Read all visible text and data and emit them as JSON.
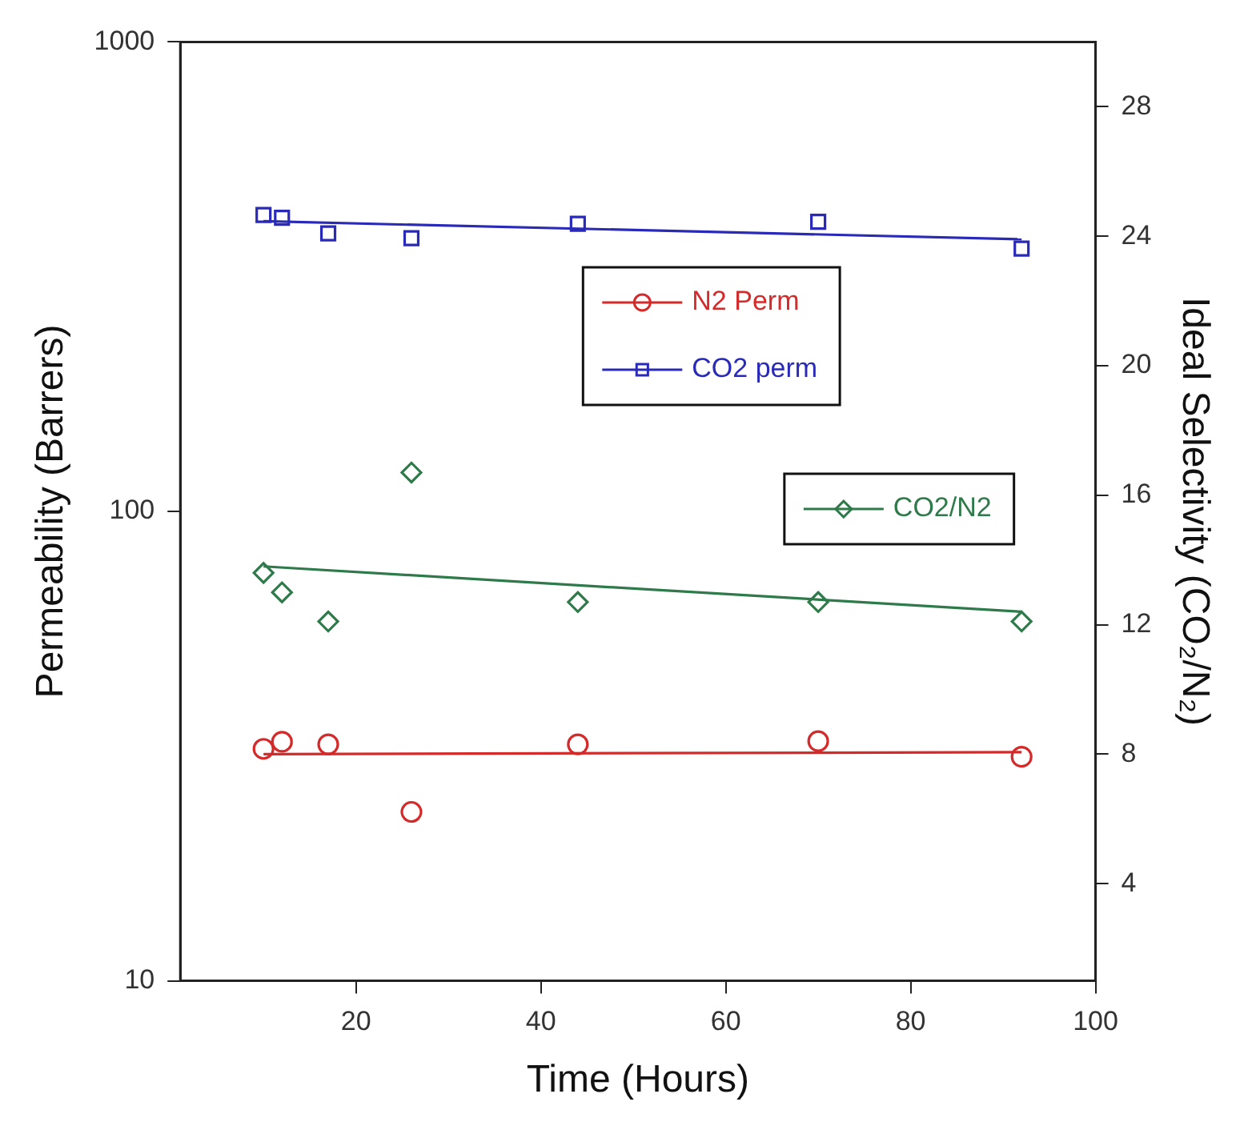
{
  "chart_data": {
    "type": "scatter",
    "xlabel": "Time (Hours)",
    "ylabel": "Permeability (Barrers)",
    "y2label": "Ideal Selectivity (CO₂/N₂)",
    "xlim": [
      1,
      100
    ],
    "xticks": [
      20,
      40,
      60,
      80,
      100
    ],
    "ylim": [
      10,
      1000
    ],
    "yticks": [
      10,
      100,
      1000
    ],
    "y2lim": [
      1,
      30
    ],
    "y2ticks": [
      4,
      8,
      12,
      16,
      20,
      24,
      28
    ],
    "log": "y",
    "grid": false,
    "legend": "right",
    "series": [
      {
        "name": "N2 Perm",
        "type": "scatter",
        "marker": "circle",
        "color": "#d42a2a",
        "x": [
          10,
          12,
          17,
          26,
          44,
          70,
          92
        ],
        "values": [
          31.2,
          32.3,
          31.9,
          22.9,
          31.9,
          32.4,
          30.0
        ]
      },
      {
        "name": "CO2 perm",
        "type": "scatter",
        "marker": "square",
        "color": "#2a2ab8",
        "x": [
          10,
          12,
          17,
          26,
          44,
          70,
          92
        ],
        "values": [
          428,
          422,
          391,
          382,
          410,
          414,
          363
        ]
      },
      {
        "name": "CO2/N2",
        "type": "scatter",
        "marker": "diamond",
        "axis": "y2",
        "color": "#2f7a4a",
        "x": [
          10,
          12,
          17,
          26,
          44,
          70,
          92
        ],
        "values": [
          13.6,
          13.0,
          12.1,
          16.7,
          12.7,
          12.7,
          12.1
        ]
      },
      {
        "type": "line",
        "marker": "none",
        "color": "#d42a2a",
        "x": [
          10,
          92
        ],
        "values": [
          30.4,
          30.7
        ]
      },
      {
        "type": "line",
        "marker": "none",
        "color": "#2a2ab8",
        "x": [
          10,
          92
        ],
        "values": [
          415,
          380
        ]
      },
      {
        "type": "line",
        "marker": "none",
        "axis": "y2",
        "color": "#2f7a4a",
        "x": [
          10,
          92
        ],
        "values": [
          13.8,
          12.4
        ]
      }
    ]
  }
}
